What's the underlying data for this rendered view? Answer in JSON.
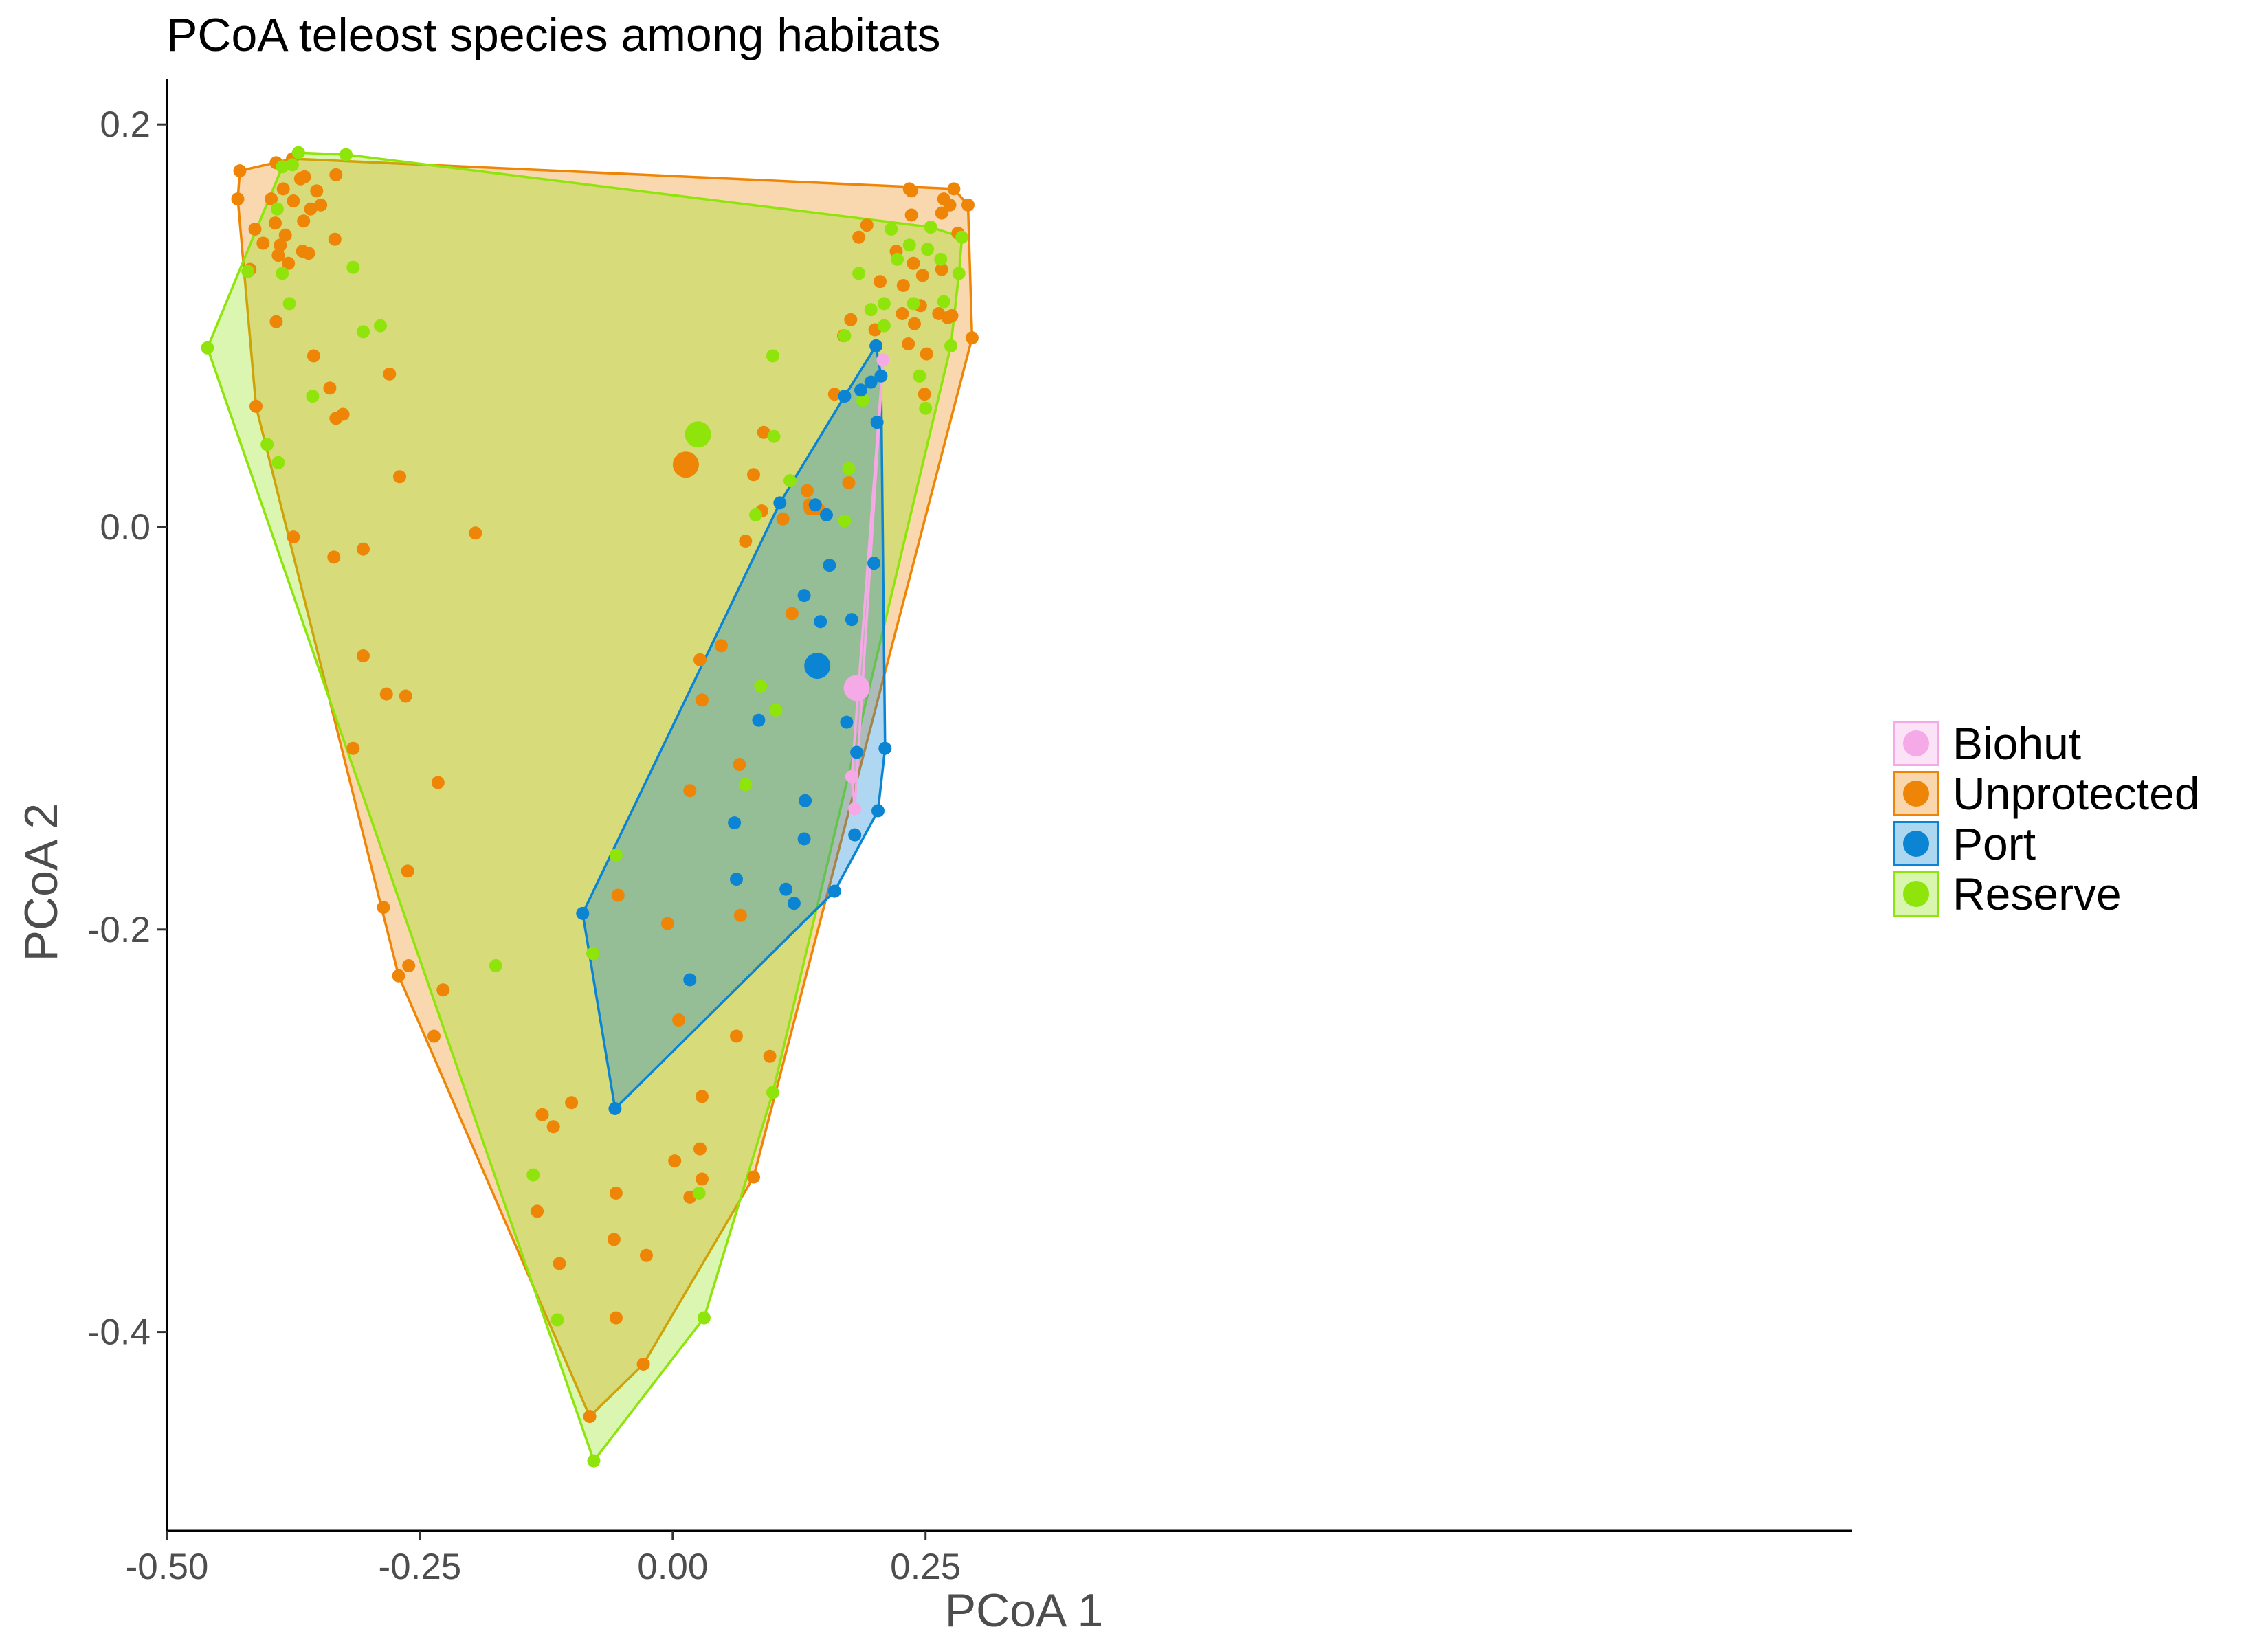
{
  "chart_data": {
    "type": "scatter",
    "title": "PCoA teleost species among habitats",
    "xlabel": "PCoA 1",
    "ylabel": "PCoA 2",
    "xlim": [
      -0.5,
      0.33
    ],
    "ylim": [
      -0.5,
      0.22
    ],
    "xticks": [
      -0.5,
      -0.25,
      0.0,
      0.25
    ],
    "xtick_labels": [
      "-0.50",
      "-0.25",
      "0.00",
      "0.25"
    ],
    "yticks": [
      -0.4,
      -0.2,
      0.0,
      0.2
    ],
    "ytick_labels": [
      "-0.4",
      "-0.2",
      "0.0",
      "0.2"
    ],
    "grid": false,
    "legend_position": "right",
    "series": [
      {
        "name": "Biohut",
        "color": "#F5A9E6",
        "hull": true,
        "centroid": [
          0.182,
          -0.08
        ],
        "points": [
          [
            0.208,
            0.083
          ],
          [
            0.177,
            -0.124
          ],
          [
            0.18,
            -0.14
          ]
        ]
      },
      {
        "name": "Unprotected",
        "color": "#EE8506",
        "hull": true,
        "centroid": [
          0.013,
          0.031
        ],
        "points": [
          [
            -0.428,
            0.177
          ],
          [
            -0.43,
            0.163
          ],
          [
            -0.413,
            0.148
          ],
          [
            -0.418,
            0.128
          ],
          [
            -0.405,
            0.141
          ],
          [
            -0.397,
            0.163
          ],
          [
            -0.393,
            0.151
          ],
          [
            -0.39,
            0.135
          ],
          [
            -0.392,
            0.102
          ],
          [
            -0.385,
            0.168
          ],
          [
            -0.388,
            0.14
          ],
          [
            -0.38,
            0.131
          ],
          [
            -0.383,
            0.145
          ],
          [
            -0.376,
            0.183
          ],
          [
            -0.375,
            0.162
          ],
          [
            -0.368,
            0.173
          ],
          [
            -0.365,
            0.152
          ],
          [
            -0.364,
            0.174
          ],
          [
            -0.366,
            0.137
          ],
          [
            -0.36,
            0.136
          ],
          [
            -0.358,
            0.158
          ],
          [
            -0.352,
            0.167
          ],
          [
            -0.348,
            0.16
          ],
          [
            -0.333,
            0.175
          ],
          [
            -0.334,
            0.143
          ],
          [
            -0.392,
            0.181
          ],
          [
            -0.339,
            0.069
          ],
          [
            -0.333,
            0.054
          ],
          [
            -0.326,
            0.056
          ],
          [
            -0.28,
            0.076
          ],
          [
            -0.412,
            0.06
          ],
          [
            -0.375,
            -0.005
          ],
          [
            -0.306,
            -0.011
          ],
          [
            -0.306,
            -0.064
          ],
          [
            -0.283,
            -0.083
          ],
          [
            -0.264,
            -0.084
          ],
          [
            -0.316,
            -0.11
          ],
          [
            -0.27,
            0.025
          ],
          [
            -0.262,
            -0.171
          ],
          [
            -0.286,
            -0.189
          ],
          [
            -0.261,
            -0.218
          ],
          [
            -0.271,
            -0.223
          ],
          [
            -0.227,
            -0.23
          ],
          [
            -0.236,
            -0.253
          ],
          [
            -0.129,
            -0.292
          ],
          [
            -0.118,
            -0.298
          ],
          [
            -0.1,
            -0.286
          ],
          [
            -0.134,
            -0.34
          ],
          [
            -0.112,
            -0.366
          ],
          [
            -0.054,
            -0.183
          ],
          [
            -0.058,
            -0.354
          ],
          [
            -0.056,
            -0.331
          ],
          [
            -0.056,
            -0.393
          ],
          [
            -0.026,
            -0.362
          ],
          [
            -0.005,
            -0.197
          ],
          [
            0.006,
            -0.245
          ],
          [
            0.002,
            -0.315
          ],
          [
            0.017,
            -0.333
          ],
          [
            0.027,
            -0.309
          ],
          [
            0.029,
            -0.324
          ],
          [
            0.029,
            -0.283
          ],
          [
            0.017,
            -0.131
          ],
          [
            0.027,
            -0.066
          ],
          [
            0.029,
            -0.086
          ],
          [
            0.048,
            -0.059
          ],
          [
            0.063,
            -0.253
          ],
          [
            0.066,
            -0.118
          ],
          [
            0.067,
            -0.193
          ],
          [
            0.08,
            -0.323
          ],
          [
            0.096,
            -0.263
          ],
          [
            0.118,
            -0.043
          ],
          [
            0.133,
            0.018
          ],
          [
            0.135,
            0.011
          ],
          [
            0.136,
            0.009
          ],
          [
            0.14,
            0.009
          ],
          [
            0.144,
            0.009
          ],
          [
            0.16,
            0.066
          ],
          [
            0.174,
            0.022
          ],
          [
            0.169,
            0.095
          ],
          [
            0.176,
            0.103
          ],
          [
            0.184,
            0.144
          ],
          [
            0.192,
            0.15
          ],
          [
            0.2,
            0.098
          ],
          [
            0.205,
            0.122
          ],
          [
            0.221,
            0.137
          ],
          [
            0.227,
            0.106
          ],
          [
            0.228,
            0.12
          ],
          [
            0.233,
            0.091
          ],
          [
            0.234,
            0.168
          ],
          [
            0.236,
            0.155
          ],
          [
            0.238,
            0.131
          ],
          [
            0.236,
            0.167
          ],
          [
            0.239,
            0.101
          ],
          [
            0.245,
            0.11
          ],
          [
            0.247,
            0.125
          ],
          [
            0.249,
            0.066
          ],
          [
            0.251,
            0.086
          ],
          [
            0.263,
            0.106
          ],
          [
            0.266,
            0.128
          ],
          [
            0.268,
            0.163
          ],
          [
            0.274,
            0.16
          ],
          [
            0.272,
            0.104
          ],
          [
            0.276,
            0.105
          ],
          [
            0.278,
            0.168
          ],
          [
            0.282,
            0.146
          ],
          [
            0.266,
            0.156
          ],
          [
            0.296,
            0.094
          ],
          [
            0.292,
            0.16
          ],
          [
            0.09,
            0.047
          ],
          [
            0.08,
            0.026
          ],
          [
            0.088,
            0.008
          ],
          [
            0.072,
            -0.007
          ],
          [
            0.109,
            0.004
          ],
          [
            -0.082,
            -0.442
          ],
          [
            -0.029,
            -0.416
          ],
          [
            -0.195,
            -0.003
          ],
          [
            -0.232,
            -0.127
          ],
          [
            -0.355,
            0.085
          ],
          [
            -0.335,
            -0.015
          ]
        ]
      },
      {
        "name": "Port",
        "color": "#0A84D3",
        "hull": true,
        "centroid": [
          0.143,
          -0.069
        ],
        "points": [
          [
            -0.089,
            -0.192
          ],
          [
            -0.057,
            -0.289
          ],
          [
            0.017,
            -0.225
          ],
          [
            0.061,
            -0.147
          ],
          [
            0.063,
            -0.175
          ],
          [
            0.085,
            -0.096
          ],
          [
            0.106,
            0.012
          ],
          [
            0.112,
            -0.18
          ],
          [
            0.12,
            -0.187
          ],
          [
            0.13,
            -0.034
          ],
          [
            0.131,
            -0.136
          ],
          [
            0.13,
            -0.155
          ],
          [
            0.141,
            0.011
          ],
          [
            0.146,
            -0.047
          ],
          [
            0.152,
            0.006
          ],
          [
            0.155,
            -0.019
          ],
          [
            0.16,
            -0.181
          ],
          [
            0.17,
            0.065
          ],
          [
            0.177,
            -0.046
          ],
          [
            0.182,
            -0.112
          ],
          [
            0.186,
            0.068
          ],
          [
            0.196,
            0.072
          ],
          [
            0.199,
            -0.018
          ],
          [
            0.201,
            0.09
          ],
          [
            0.202,
            0.052
          ],
          [
            0.206,
            0.075
          ],
          [
            0.203,
            -0.141
          ],
          [
            0.21,
            -0.11
          ],
          [
            0.18,
            -0.153
          ],
          [
            0.172,
            -0.097
          ]
        ]
      },
      {
        "name": "Reserve",
        "color": "#8EE40B",
        "hull": true,
        "centroid": [
          0.025,
          0.046
        ],
        "points": [
          [
            -0.46,
            0.089
          ],
          [
            -0.42,
            0.127
          ],
          [
            -0.391,
            0.158
          ],
          [
            -0.386,
            0.126
          ],
          [
            -0.386,
            0.179
          ],
          [
            -0.379,
            0.111
          ],
          [
            -0.376,
            0.18
          ],
          [
            -0.37,
            0.186
          ],
          [
            -0.356,
            0.065
          ],
          [
            -0.323,
            0.185
          ],
          [
            -0.316,
            0.129
          ],
          [
            -0.306,
            0.097
          ],
          [
            -0.289,
            0.1
          ],
          [
            -0.401,
            0.041
          ],
          [
            -0.39,
            0.032
          ],
          [
            -0.175,
            -0.218
          ],
          [
            -0.079,
            -0.212
          ],
          [
            -0.056,
            -0.163
          ],
          [
            -0.138,
            -0.322
          ],
          [
            -0.114,
            -0.394
          ],
          [
            -0.078,
            -0.464
          ],
          [
            0.026,
            -0.331
          ],
          [
            0.031,
            -0.393
          ],
          [
            0.072,
            -0.128
          ],
          [
            0.082,
            0.006
          ],
          [
            0.087,
            -0.079
          ],
          [
            0.099,
            0.085
          ],
          [
            0.102,
            -0.091
          ],
          [
            0.099,
            -0.281
          ],
          [
            0.1,
            0.045
          ],
          [
            0.116,
            0.023
          ],
          [
            0.17,
            0.003
          ],
          [
            0.188,
            0.063
          ],
          [
            0.174,
            0.029
          ],
          [
            0.184,
            0.126
          ],
          [
            0.196,
            0.108
          ],
          [
            0.209,
            0.111
          ],
          [
            0.222,
            0.133
          ],
          [
            0.238,
            0.111
          ],
          [
            0.244,
            0.075
          ],
          [
            0.244,
            0.075
          ],
          [
            0.25,
            0.059
          ],
          [
            0.252,
            0.138
          ],
          [
            0.255,
            0.149
          ],
          [
            0.265,
            0.133
          ],
          [
            0.268,
            0.112
          ],
          [
            0.275,
            0.09
          ],
          [
            0.283,
            0.126
          ],
          [
            0.286,
            0.144
          ],
          [
            0.17,
            0.095
          ],
          [
            0.209,
            0.1
          ],
          [
            0.234,
            0.14
          ],
          [
            0.216,
            0.148
          ]
        ]
      }
    ]
  }
}
